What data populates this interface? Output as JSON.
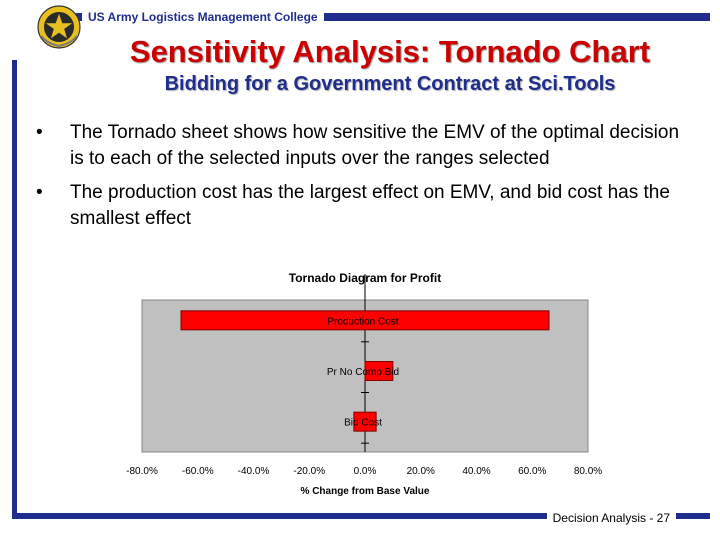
{
  "header": {
    "org_label": "US Army Logistics Management College",
    "emblem_icon": "army-crest-icon"
  },
  "slide": {
    "title": "Sensitivity Analysis:  Tornado Chart",
    "subtitle": "Bidding for a Government Contract at Sci.Tools",
    "bullets": [
      "The Tornado sheet shows how sensitive the EMV of the optimal decision is to each of the selected inputs over the ranges selected",
      "The production cost has the largest effect on EMV, and bid cost has the smallest effect"
    ],
    "bullet_glyph": "•"
  },
  "footer": {
    "label": "Decision Analysis - 27"
  },
  "colors": {
    "accent_blue": "#1f2e8c",
    "title_red": "#cc0000",
    "bar_red": "#ff0000",
    "plot_bg": "#c0c0c0"
  },
  "chart_data": {
    "type": "bar",
    "orientation": "horizontal",
    "title": "Tornado Diagram for Profit",
    "xlabel": "% Change from Base Value",
    "ylabel": "",
    "xlim": [
      -80,
      80
    ],
    "x_ticks": [
      "-80.0%",
      "-60.0%",
      "-40.0%",
      "-20.0%",
      "0.0%",
      "20.0%",
      "40.0%",
      "60.0%",
      "80.0%"
    ],
    "categories": [
      "Production Cost",
      "Pr No Comp Bid",
      "Bid Cost"
    ],
    "ranges": [
      {
        "low": -66,
        "high": 66
      },
      {
        "low": 0,
        "high": 10
      },
      {
        "low": -4,
        "high": 4
      }
    ],
    "grid": false,
    "legend": "none"
  }
}
